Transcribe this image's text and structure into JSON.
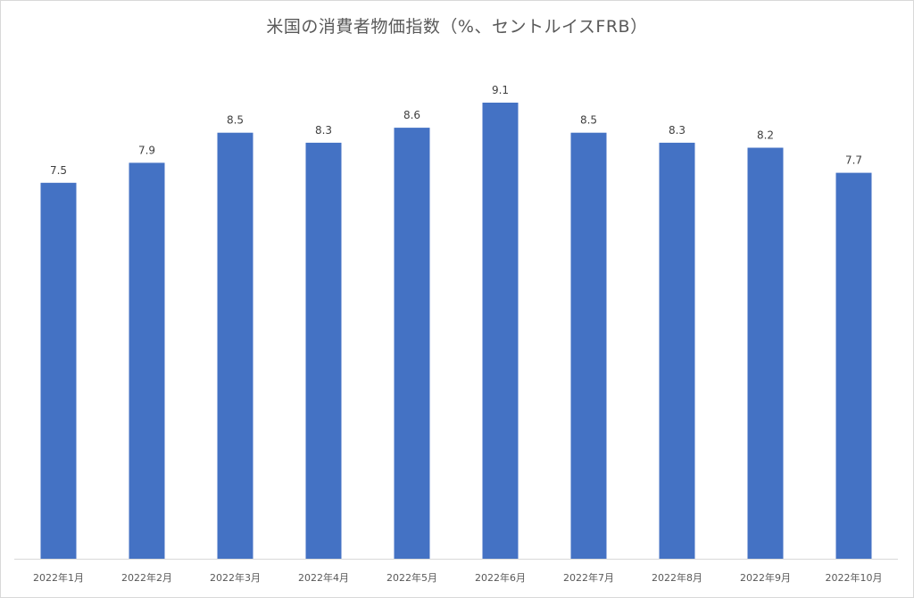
{
  "chart_data": {
    "type": "bar",
    "title": "米国の消費者物価指数（%、セントルイスFRB）",
    "categories": [
      "2022年1月",
      "2022年2月",
      "2022年3月",
      "2022年4月",
      "2022年5月",
      "2022年6月",
      "2022年7月",
      "2022年8月",
      "2022年9月",
      "2022年10月"
    ],
    "values": [
      7.5,
      7.9,
      8.5,
      8.3,
      8.6,
      9.1,
      8.5,
      8.3,
      8.2,
      7.7
    ],
    "data_labels": [
      "7.5",
      "7.9",
      "8.5",
      "8.3",
      "8.6",
      "9.1",
      "8.5",
      "8.3",
      "8.2",
      "7.7"
    ],
    "xlabel": "",
    "ylabel": "",
    "ylim": [
      0,
      9.1
    ],
    "grid": false,
    "legend": "none",
    "bar_color": "#4472c4"
  }
}
